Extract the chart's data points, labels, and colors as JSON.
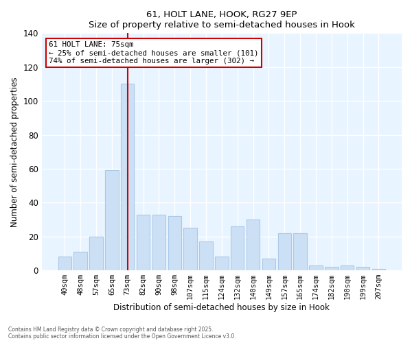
{
  "title1": "61, HOLT LANE, HOOK, RG27 9EP",
  "title2": "Size of property relative to semi-detached houses in Hook",
  "xlabel": "Distribution of semi-detached houses by size in Hook",
  "ylabel": "Number of semi-detached properties",
  "categories": [
    "40sqm",
    "48sqm",
    "57sqm",
    "65sqm",
    "73sqm",
    "82sqm",
    "90sqm",
    "98sqm",
    "107sqm",
    "115sqm",
    "124sqm",
    "132sqm",
    "140sqm",
    "149sqm",
    "157sqm",
    "165sqm",
    "174sqm",
    "182sqm",
    "190sqm",
    "199sqm",
    "207sqm"
  ],
  "values": [
    8,
    11,
    20,
    59,
    110,
    33,
    33,
    32,
    25,
    17,
    8,
    26,
    30,
    7,
    22,
    22,
    3,
    2,
    3,
    2,
    1
  ],
  "bar_color": "#cce0f5",
  "bar_edge_color": "#aac8e8",
  "vline_x_index": 4,
  "vline_color": "#cc0000",
  "annotation_line1": "61 HOLT LANE: 75sqm",
  "annotation_line2": "← 25% of semi-detached houses are smaller (101)",
  "annotation_line3": "74% of semi-detached houses are larger (302) →",
  "annotation_box_color": "#cc0000",
  "annotation_box_fill": "#ffffff",
  "footer1": "Contains HM Land Registry data © Crown copyright and database right 2025.",
  "footer2": "Contains public sector information licensed under the Open Government Licence v3.0.",
  "fig_bg_color": "#ffffff",
  "plot_bg_color": "#e8f4ff",
  "grid_color": "#ffffff",
  "ylim": [
    0,
    140
  ],
  "yticks": [
    0,
    20,
    40,
    60,
    80,
    100,
    120,
    140
  ]
}
